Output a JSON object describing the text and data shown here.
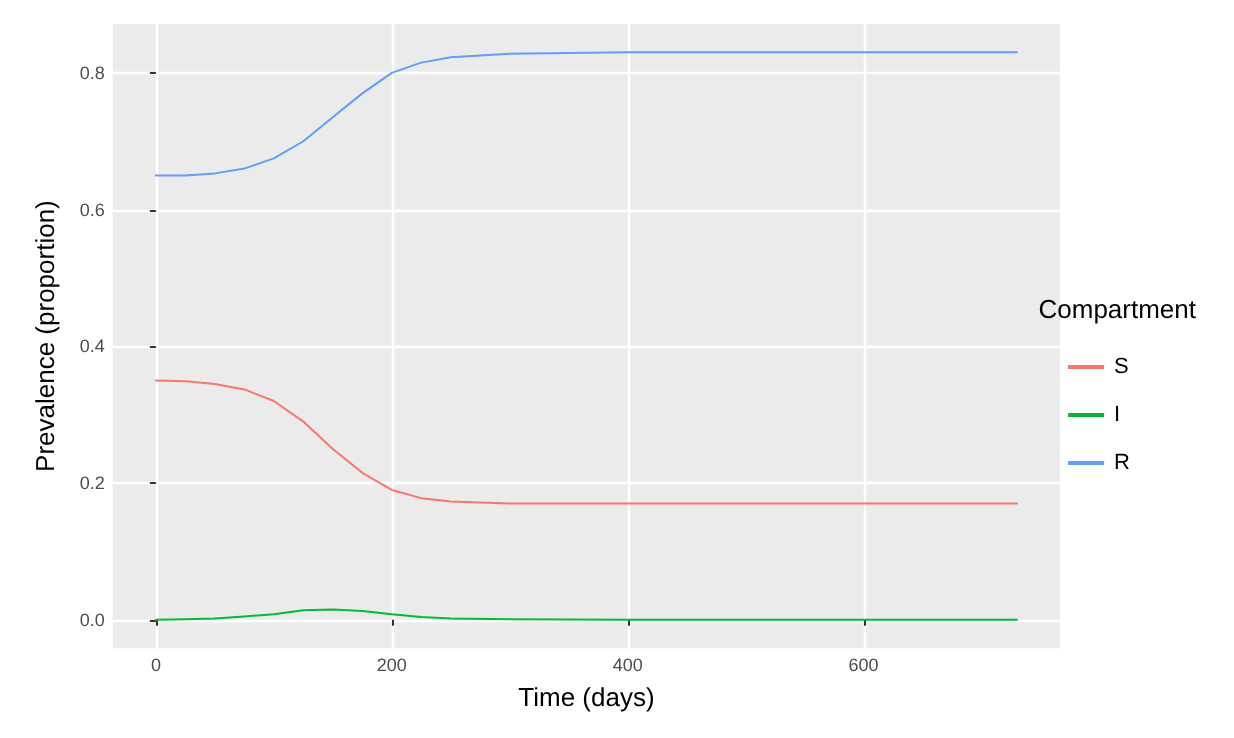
{
  "chart_data": {
    "type": "line",
    "xlabel": "Time (days)",
    "ylabel": "Prevalence (proportion)",
    "legend_title": "Compartment",
    "legend": "right",
    "grid": true,
    "marker": "none",
    "line_style": "solid",
    "xlim": [
      -36.5,
      766.5
    ],
    "xticks": [
      0,
      200,
      400,
      600
    ],
    "ylim": [
      -0.0415,
      0.8715
    ],
    "yticks": [
      {
        "value": 0,
        "label": "0.0"
      },
      {
        "value": 0.2,
        "label": "0.2"
      },
      {
        "value": 0.4,
        "label": "0.4"
      },
      {
        "value": 0.6,
        "label": "0.6"
      },
      {
        "value": 0.8,
        "label": "0.8"
      }
    ],
    "series": [
      {
        "name": "S",
        "color": "#f8766d",
        "x": [
          0,
          25,
          50,
          75,
          100,
          125,
          150,
          175,
          200,
          225,
          250,
          300,
          400,
          730
        ],
        "values": [
          0.35,
          0.349,
          0.345,
          0.337,
          0.32,
          0.29,
          0.25,
          0.215,
          0.19,
          0.178,
          0.173,
          0.17,
          0.17,
          0.17
        ]
      },
      {
        "name": "I",
        "color": "#00ba38",
        "x": [
          0,
          25,
          50,
          75,
          100,
          125,
          150,
          175,
          200,
          225,
          250,
          300,
          400,
          730
        ],
        "values": [
          0,
          0.001,
          0.002,
          0.005,
          0.008,
          0.014,
          0.015,
          0.013,
          0.008,
          0.004,
          0.002,
          0.001,
          0,
          0
        ]
      },
      {
        "name": "R",
        "color": "#619cff",
        "x": [
          0,
          25,
          50,
          75,
          100,
          125,
          150,
          175,
          200,
          225,
          250,
          300,
          400,
          730
        ],
        "values": [
          0.65,
          0.65,
          0.653,
          0.66,
          0.675,
          0.7,
          0.735,
          0.77,
          0.8,
          0.815,
          0.823,
          0.828,
          0.83,
          0.83
        ]
      }
    ]
  }
}
